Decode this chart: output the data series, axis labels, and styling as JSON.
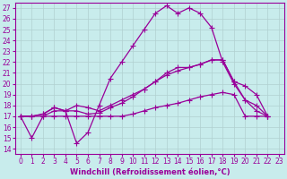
{
  "xlabel": "Windchill (Refroidissement éolien,°C)",
  "background_color": "#c8ecec",
  "line_color": "#990099",
  "xlim": [
    -0.5,
    23.5
  ],
  "ylim": [
    13.5,
    27.5
  ],
  "xticks": [
    0,
    1,
    2,
    3,
    4,
    5,
    6,
    7,
    8,
    9,
    10,
    11,
    12,
    13,
    14,
    15,
    16,
    17,
    18,
    19,
    20,
    21,
    22,
    23
  ],
  "yticks": [
    14,
    15,
    16,
    17,
    18,
    19,
    20,
    21,
    22,
    23,
    24,
    25,
    26,
    27
  ],
  "lines": [
    {
      "x": [
        0,
        1,
        2,
        3,
        4,
        5,
        6,
        7,
        8,
        9,
        10,
        11,
        12,
        13,
        14,
        15,
        16,
        17,
        18,
        19,
        20,
        21,
        22
      ],
      "y": [
        17,
        15,
        17,
        17.5,
        17.5,
        14.5,
        15.5,
        18,
        20.5,
        22,
        23.5,
        25,
        26.5,
        27.2,
        26.5,
        27,
        26.5,
        25.2,
        22,
        20,
        18.5,
        17.5,
        17
      ]
    },
    {
      "x": [
        0,
        1,
        2,
        3,
        4,
        5,
        6,
        7,
        8,
        9,
        10,
        11,
        12,
        13,
        14,
        15,
        16,
        17,
        18,
        19,
        20,
        21,
        22
      ],
      "y": [
        17,
        17,
        17.2,
        17.8,
        17.5,
        17.5,
        17.2,
        17.3,
        17.8,
        18.2,
        18.8,
        19.5,
        20.2,
        21.0,
        21.5,
        21.5,
        21.8,
        22.2,
        22.2,
        20.2,
        19.8,
        19.0,
        17
      ]
    },
    {
      "x": [
        0,
        1,
        2,
        3,
        4,
        5,
        6,
        7,
        8,
        9,
        10,
        11,
        12,
        13,
        14,
        15,
        16,
        17,
        18,
        19,
        20,
        21,
        22
      ],
      "y": [
        17,
        17,
        17,
        17,
        17,
        17,
        17,
        17,
        17,
        17,
        17.2,
        17.5,
        17.8,
        18.0,
        18.2,
        18.5,
        18.8,
        19.0,
        19.2,
        19.0,
        17,
        17,
        17
      ]
    },
    {
      "x": [
        0,
        1,
        2,
        3,
        4,
        5,
        6,
        7,
        8,
        9,
        10,
        11,
        12,
        13,
        14,
        15,
        16,
        17,
        18,
        19,
        20,
        21,
        22
      ],
      "y": [
        17,
        17,
        17.2,
        17.8,
        17.5,
        18.0,
        17.8,
        17.5,
        18.0,
        18.5,
        19.0,
        19.5,
        20.2,
        20.8,
        21.2,
        21.5,
        21.8,
        22.2,
        22.2,
        20.2,
        18.5,
        18.0,
        17
      ]
    }
  ],
  "marker": "+",
  "markersize": 4,
  "linewidth": 0.9,
  "grid_color": "#b0d0d0",
  "label_fontsize": 6,
  "tick_fontsize": 5.5
}
